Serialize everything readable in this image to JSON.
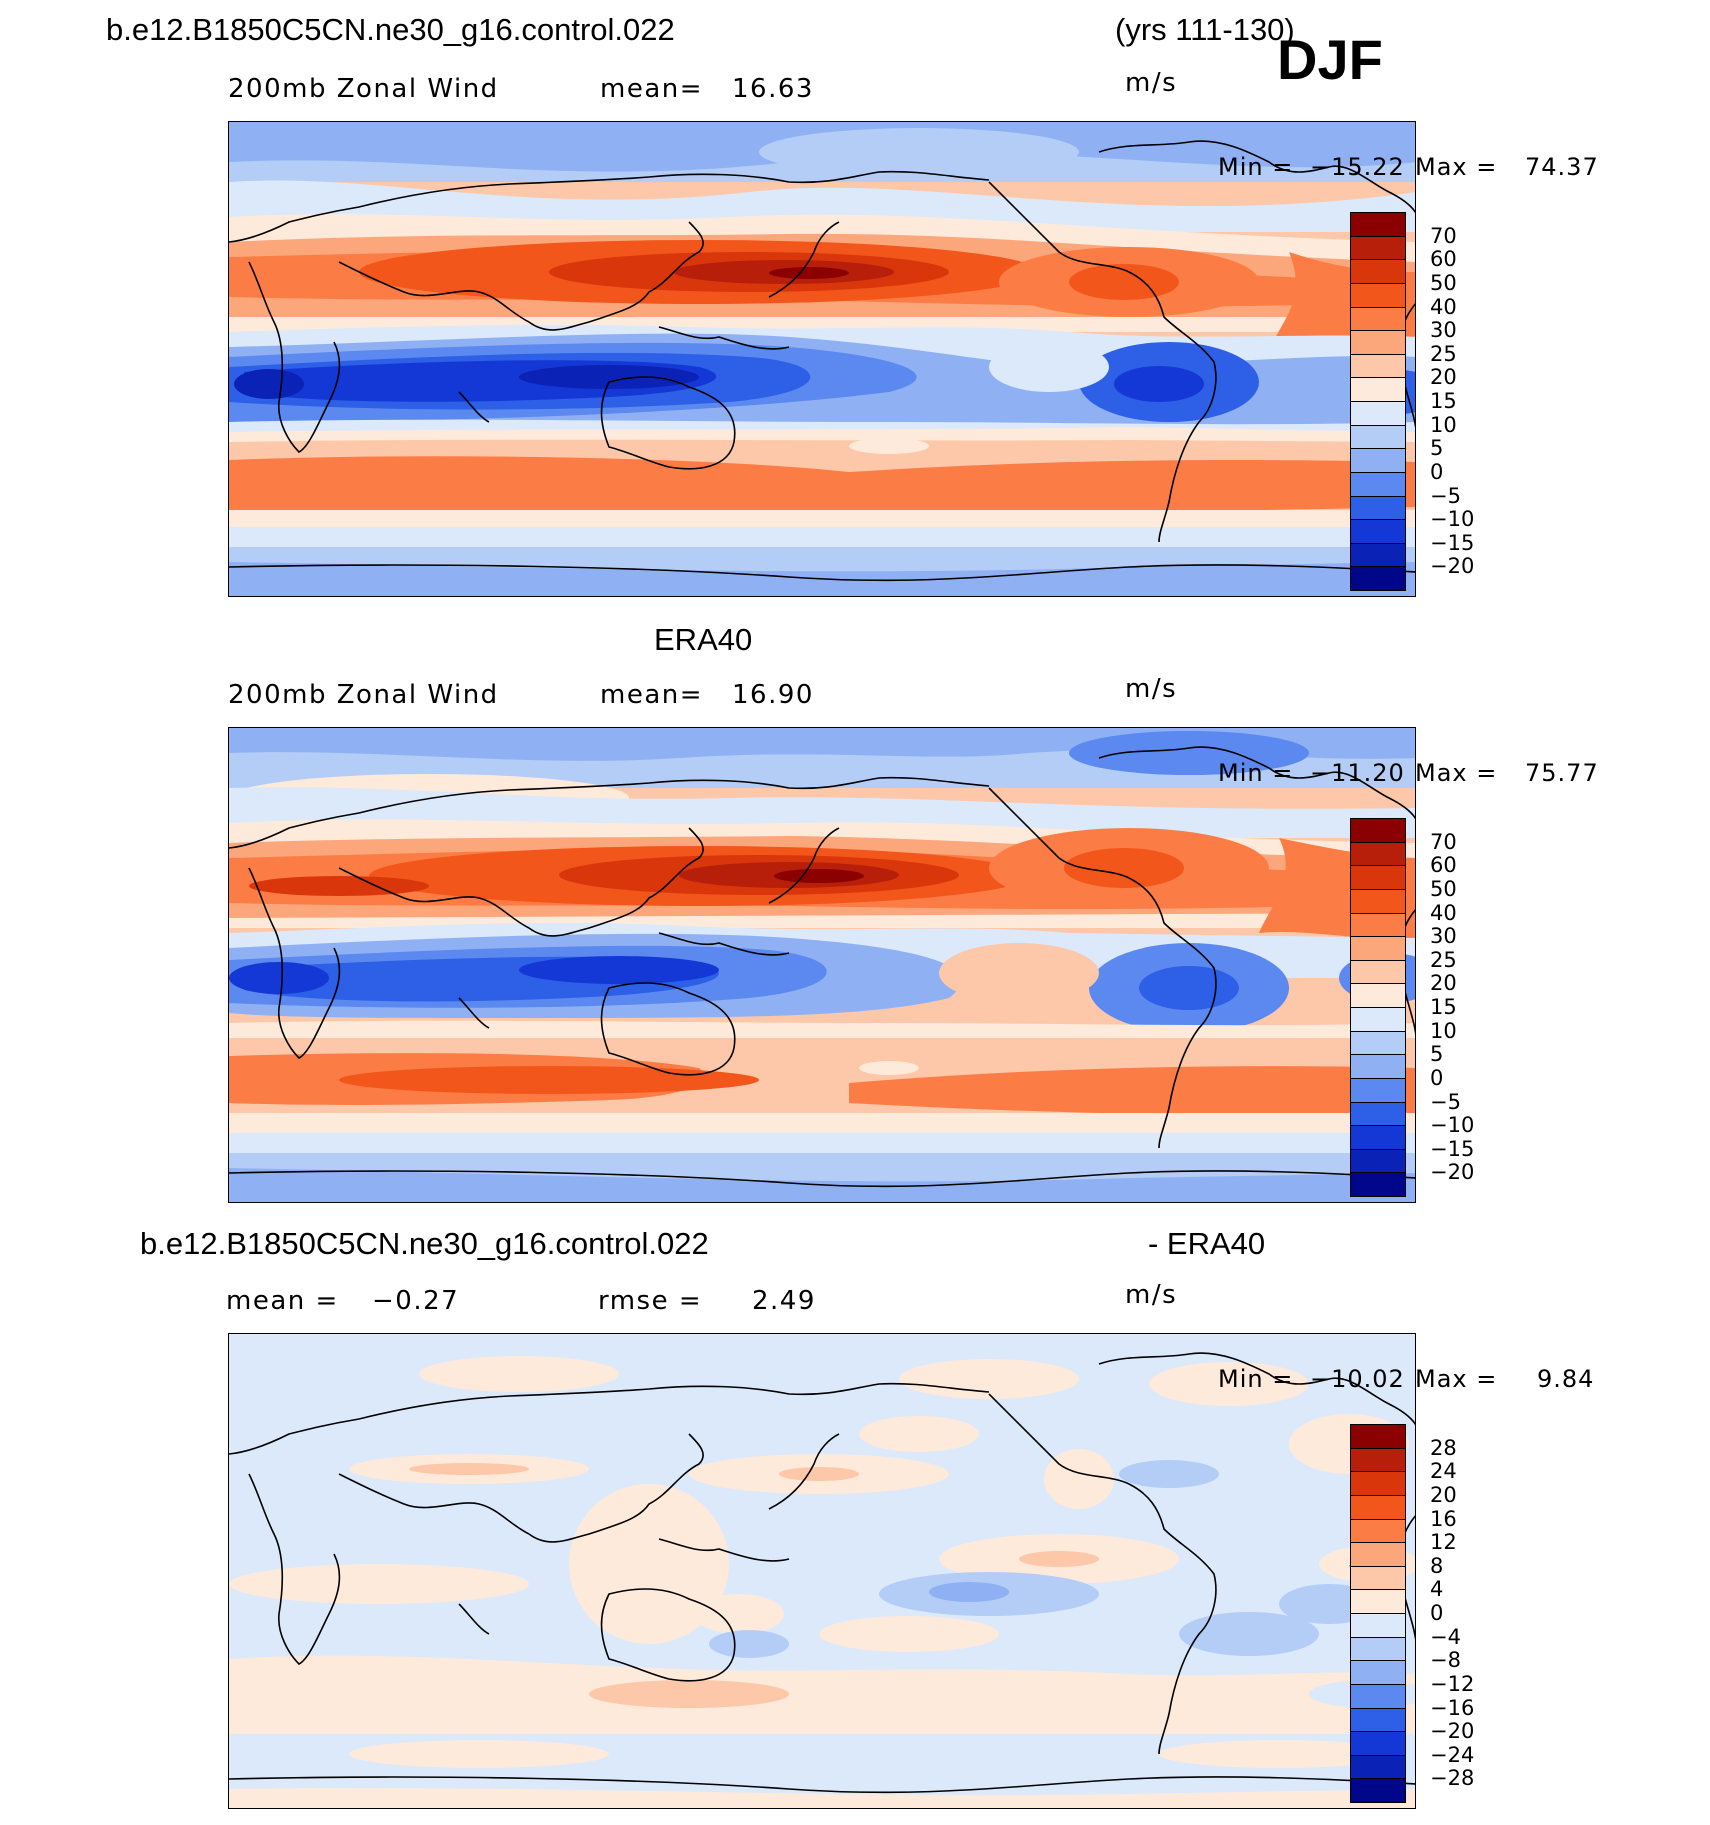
{
  "header": {
    "case_name": "b.e12.B1850C5CN.ne30_g16.control.022",
    "years": "(yrs 111-130)",
    "season": "DJF"
  },
  "panels": [
    {
      "id": "model",
      "subtitle_left": "200mb  Zonal  Wind",
      "stat_label": "mean=",
      "stat_value": "16.63",
      "units": "m/s",
      "min_label": "Min  =",
      "min_value": "−15.22",
      "max_label": "Max  =",
      "max_value": "74.37",
      "colorbar": {
        "labels": [
          "70",
          "60",
          "50",
          "40",
          "30",
          "25",
          "20",
          "15",
          "10",
          "5",
          "0",
          "−5",
          "−10",
          "−15",
          "−20"
        ],
        "colors": [
          "#8b0000",
          "#b71f0a",
          "#d9360c",
          "#f3561b",
          "#fb7d45",
          "#fca77b",
          "#fdc7a9",
          "#fdeadb",
          "#dbe9fb",
          "#b4cdf7",
          "#8fb1f4",
          "#5b89f0",
          "#2d5fe7",
          "#1438d6",
          "#0b22b6",
          "#00068a"
        ]
      }
    },
    {
      "id": "obs",
      "title": "ERA40",
      "subtitle_left": "200mb  Zonal  Wind",
      "stat_label": "mean=",
      "stat_value": "16.90",
      "units": "m/s",
      "min_label": "Min  =",
      "min_value": "−11.20",
      "max_label": "Max  =",
      "max_value": "75.77",
      "colorbar": {
        "labels": [
          "70",
          "60",
          "50",
          "40",
          "30",
          "25",
          "20",
          "15",
          "10",
          "5",
          "0",
          "−5",
          "−10",
          "−15",
          "−20"
        ],
        "colors": [
          "#8b0000",
          "#b71f0a",
          "#d9360c",
          "#f3561b",
          "#fb7d45",
          "#fca77b",
          "#fdc7a9",
          "#fdeadb",
          "#dbe9fb",
          "#b4cdf7",
          "#8fb1f4",
          "#5b89f0",
          "#2d5fe7",
          "#1438d6",
          "#0b22b6",
          "#00068a"
        ]
      }
    },
    {
      "id": "diff",
      "title_left": "b.e12.B1850C5CN.ne30_g16.control.022",
      "title_right": "- ERA40",
      "stat_label": "mean  =",
      "stat_value": "−0.27",
      "stat2_label": "rmse  =",
      "stat2_value": "2.49",
      "units": "m/s",
      "min_label": "Min  =",
      "min_value": "−10.02",
      "max_label": "Max  =",
      "max_value": "9.84",
      "colorbar": {
        "labels": [
          "28",
          "24",
          "20",
          "16",
          "12",
          "8",
          "4",
          "0",
          "−4",
          "−8",
          "−12",
          "−16",
          "−20",
          "−24",
          "−28"
        ],
        "colors": [
          "#8b0000",
          "#b71f0a",
          "#d9360c",
          "#f3561b",
          "#fb7d45",
          "#fca77b",
          "#fdc7a9",
          "#fdeadb",
          "#dbe9fb",
          "#b4cdf7",
          "#8fb1f4",
          "#5b89f0",
          "#2d5fe7",
          "#1438d6",
          "#0b22b6",
          "#00068a"
        ]
      }
    }
  ]
}
